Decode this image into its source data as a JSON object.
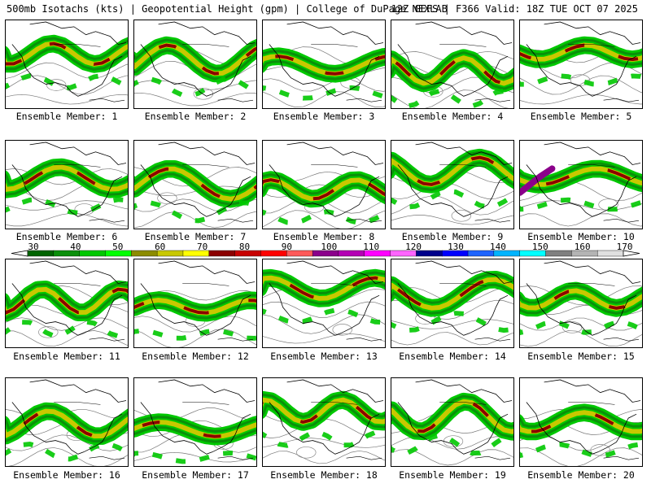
{
  "header": {
    "left": "500mb Isotachs (kts) | Geopotential Height (gpm) | College of DuPage NEXLAB",
    "right": "12Z GEFS | F366 Valid: 18Z TUE OCT 07 2025"
  },
  "colorbar": {
    "labels": [
      "30",
      "40",
      "50",
      "60",
      "70",
      "80",
      "90",
      "100",
      "110",
      "120",
      "130",
      "140",
      "150",
      "160",
      "170"
    ],
    "colors": [
      "#006400",
      "#0a8f0a",
      "#00c800",
      "#00ff00",
      "#8c8c00",
      "#c8c800",
      "#ffff00",
      "#8b0000",
      "#c80000",
      "#ff0000",
      "#ff5a5a",
      "#8b008b",
      "#b400b4",
      "#ff00ff",
      "#ff64ff",
      "#00008b",
      "#0000ff",
      "#1e64ff",
      "#00b4ff",
      "#00ffff",
      "#808080",
      "#b4b4b4",
      "#e0e0e0"
    ]
  },
  "panels": [
    {
      "label": "Ensemble Member: 1"
    },
    {
      "label": "Ensemble Member: 2"
    },
    {
      "label": "Ensemble Member: 3"
    },
    {
      "label": "Ensemble Member: 4"
    },
    {
      "label": "Ensemble Member: 5"
    },
    {
      "label": "Ensemble Member: 6"
    },
    {
      "label": "Ensemble Member: 7"
    },
    {
      "label": "Ensemble Member: 8"
    },
    {
      "label": "Ensemble Member: 9"
    },
    {
      "label": "Ensemble Member: 10"
    },
    {
      "label": "Ensemble Member: 11"
    },
    {
      "label": "Ensemble Member: 12"
    },
    {
      "label": "Ensemble Member: 13"
    },
    {
      "label": "Ensemble Member: 14"
    },
    {
      "label": "Ensemble Member: 15"
    },
    {
      "label": "Ensemble Member: 16"
    },
    {
      "label": "Ensemble Member: 17"
    },
    {
      "label": "Ensemble Member: 18"
    },
    {
      "label": "Ensemble Member: 19"
    },
    {
      "label": "Ensemble Member: 20"
    }
  ]
}
